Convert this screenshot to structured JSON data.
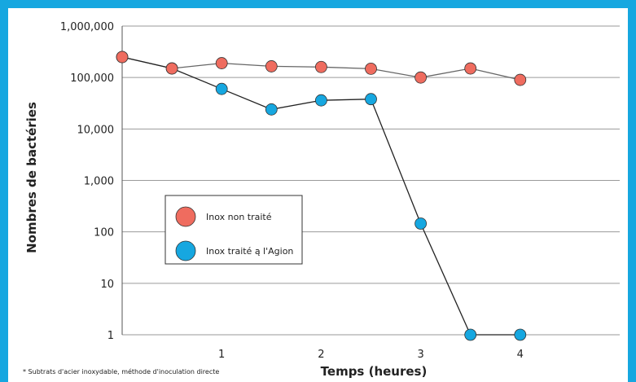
{
  "chart_data": {
    "type": "line",
    "y_scale": "log",
    "ylabel": "Nombres de bactéries",
    "xlabel": "Temps (heures)",
    "ylim": [
      1,
      1000000
    ],
    "xlim": [
      0,
      5
    ],
    "y_ticks": [
      1,
      10,
      100,
      1000,
      10000,
      100000,
      1000000
    ],
    "y_tick_labels": [
      "1",
      "10",
      "100",
      "1,000",
      "10,000",
      "100,000",
      "1,000,000"
    ],
    "x_ticks": [
      1,
      2,
      3,
      4
    ],
    "x_tick_labels": [
      "1",
      "2",
      "3",
      "4"
    ],
    "grid": "horizontal",
    "legend_position": "center-left",
    "series": [
      {
        "name": "Inox non traité",
        "color": "#ef6c5f",
        "x": [
          0,
          0.5,
          1,
          1.5,
          2,
          2.5,
          3,
          3.5,
          4
        ],
        "y": [
          250000,
          150000,
          190000,
          165000,
          160000,
          148000,
          100000,
          150000,
          90000
        ]
      },
      {
        "name": "Inox traité ą l'Agion",
        "color": "#16a7e0",
        "x": [
          0,
          0.5,
          1,
          1.5,
          2,
          2.5,
          3,
          3.5,
          4
        ],
        "y": [
          250000,
          150000,
          60000,
          24000,
          36000,
          38000,
          145,
          1,
          1
        ]
      }
    ],
    "footnote": "* Subtrats d'acier inoxydable, méthode d'inoculation directe"
  },
  "colors": {
    "frame": "#16a7e0",
    "grid": "#9a9a9a",
    "line": "#333333"
  }
}
